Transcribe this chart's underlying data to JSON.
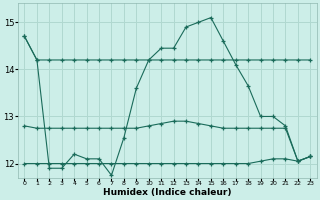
{
  "xlabel": "Humidex (Indice chaleur)",
  "bg_color": "#cceee8",
  "grid_color": "#b0d8d0",
  "line_color": "#1a6b5a",
  "xlim": [
    -0.5,
    23.5
  ],
  "ylim": [
    11.7,
    15.4
  ],
  "yticks": [
    12,
    13,
    14,
    15
  ],
  "xticks": [
    0,
    1,
    2,
    3,
    4,
    5,
    6,
    7,
    8,
    9,
    10,
    11,
    12,
    13,
    14,
    15,
    16,
    17,
    18,
    19,
    20,
    21,
    22,
    23
  ],
  "series": [
    {
      "x": [
        0,
        1,
        2,
        3,
        4,
        5,
        6,
        7,
        8,
        9,
        10,
        11,
        12,
        13,
        14,
        15,
        16,
        17,
        18,
        19,
        20,
        21,
        22,
        23
      ],
      "y": [
        14.7,
        14.2,
        14.2,
        14.2,
        14.2,
        14.2,
        14.2,
        14.2,
        14.2,
        14.2,
        14.2,
        14.2,
        14.2,
        14.2,
        14.2,
        14.2,
        14.2,
        14.2,
        14.2,
        14.2,
        14.2,
        14.2,
        14.2,
        14.2
      ]
    },
    {
      "x": [
        0,
        1,
        2,
        3,
        4,
        5,
        6,
        7,
        8,
        9,
        10,
        11,
        12,
        13,
        14,
        15,
        16,
        17,
        18,
        19,
        20,
        21,
        22,
        23
      ],
      "y": [
        14.7,
        14.2,
        11.9,
        11.9,
        12.2,
        12.1,
        12.1,
        11.75,
        12.55,
        13.6,
        14.2,
        14.45,
        14.45,
        14.9,
        15.0,
        15.1,
        14.6,
        14.1,
        13.65,
        13.0,
        13.0,
        12.8,
        12.05,
        12.15
      ]
    },
    {
      "x": [
        0,
        1,
        2,
        3,
        4,
        5,
        6,
        7,
        8,
        9,
        10,
        11,
        12,
        13,
        14,
        15,
        16,
        17,
        18,
        19,
        20,
        21,
        22,
        23
      ],
      "y": [
        12.8,
        12.75,
        12.75,
        12.75,
        12.75,
        12.75,
        12.75,
        12.75,
        12.75,
        12.75,
        12.8,
        12.85,
        12.9,
        12.9,
        12.85,
        12.8,
        12.75,
        12.75,
        12.75,
        12.75,
        12.75,
        12.75,
        12.05,
        12.15
      ]
    },
    {
      "x": [
        0,
        1,
        2,
        3,
        4,
        5,
        6,
        7,
        8,
        9,
        10,
        11,
        12,
        13,
        14,
        15,
        16,
        17,
        18,
        19,
        20,
        21,
        22,
        23
      ],
      "y": [
        12.0,
        12.0,
        12.0,
        12.0,
        12.0,
        12.0,
        12.0,
        12.0,
        12.0,
        12.0,
        12.0,
        12.0,
        12.0,
        12.0,
        12.0,
        12.0,
        12.0,
        12.0,
        12.0,
        12.05,
        12.1,
        12.1,
        12.05,
        12.15
      ]
    }
  ]
}
